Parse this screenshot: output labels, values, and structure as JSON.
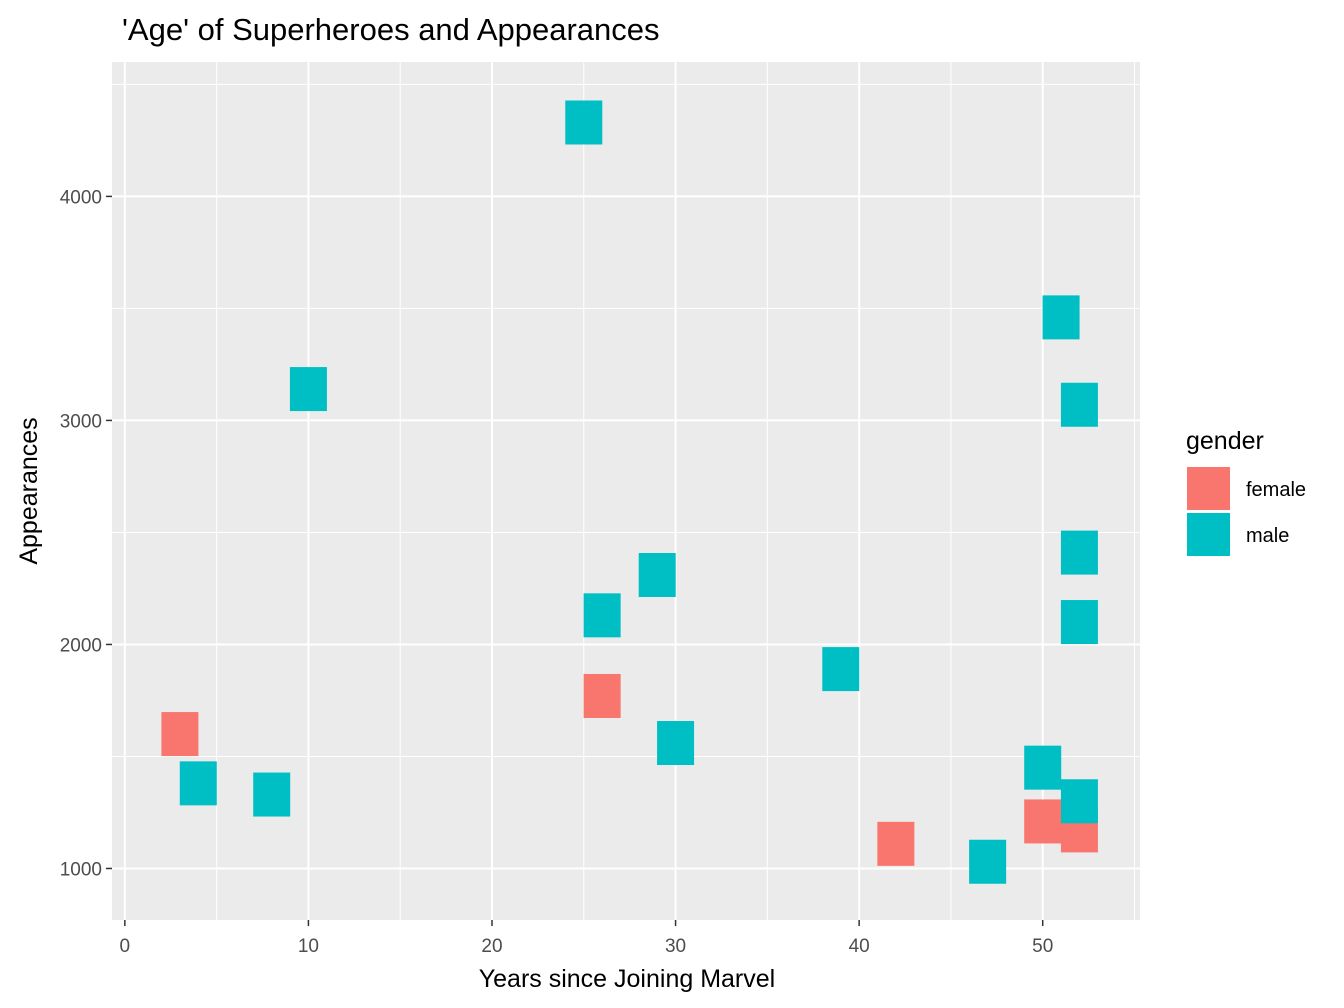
{
  "chart_data": {
    "type": "scatter",
    "title": "'Age' of Superheroes and Appearances",
    "xlabel": "Years since Joining Marvel",
    "ylabel": "Appearances",
    "xlim": [
      -0.7,
      55.3
    ],
    "ylim": [
      770,
      4600
    ],
    "xticks": [
      0,
      10,
      20,
      30,
      40,
      50
    ],
    "yticks": [
      1000,
      2000,
      3000,
      4000
    ],
    "grid": true,
    "legend": {
      "title": "gender",
      "position": "right",
      "entries": [
        {
          "label": "female",
          "color": "#F8766D"
        },
        {
          "label": "male",
          "color": "#00BFC4"
        }
      ]
    },
    "series": [
      {
        "name": "female",
        "color": "#F8766D",
        "points": [
          {
            "x": 3,
            "y": 1600
          },
          {
            "x": 26,
            "y": 1770
          },
          {
            "x": 42,
            "y": 1110
          },
          {
            "x": 50,
            "y": 1210
          },
          {
            "x": 52,
            "y": 1170
          }
        ]
      },
      {
        "name": "male",
        "color": "#00BFC4",
        "points": [
          {
            "x": 25,
            "y": 4330
          },
          {
            "x": 10,
            "y": 3140
          },
          {
            "x": 4,
            "y": 1380
          },
          {
            "x": 8,
            "y": 1330
          },
          {
            "x": 26,
            "y": 2130
          },
          {
            "x": 29,
            "y": 2310
          },
          {
            "x": 30,
            "y": 1560
          },
          {
            "x": 39,
            "y": 1890
          },
          {
            "x": 47,
            "y": 1030
          },
          {
            "x": 50,
            "y": 1450
          },
          {
            "x": 51,
            "y": 3460
          },
          {
            "x": 52,
            "y": 3070
          },
          {
            "x": 52,
            "y": 2410
          },
          {
            "x": 52,
            "y": 2100
          },
          {
            "x": 52,
            "y": 1300
          }
        ]
      }
    ]
  }
}
